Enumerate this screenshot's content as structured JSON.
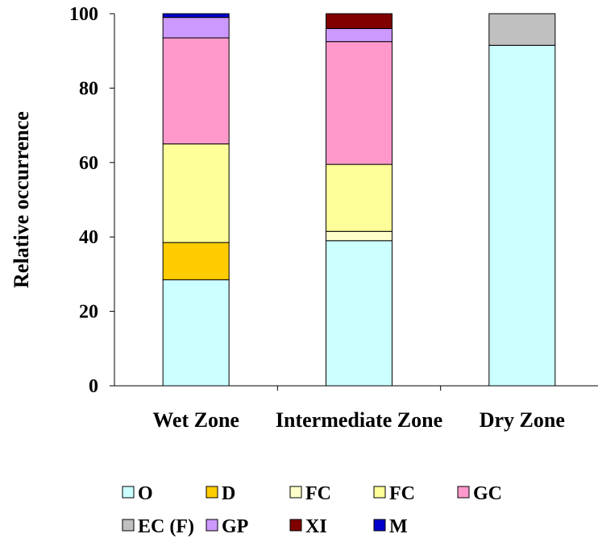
{
  "chart_data": {
    "type": "bar",
    "stacked": true,
    "ylabel": "Relative occurrence",
    "xlabel": "",
    "ylim": [
      0,
      100
    ],
    "yticks": [
      0,
      20,
      40,
      60,
      80,
      100
    ],
    "categories": [
      "Wet Zone",
      "Intermediate Zone",
      "Dry Zone"
    ],
    "series": [
      {
        "name": "O",
        "color": "#ccffff",
        "values": [
          28.5,
          39,
          91.5
        ]
      },
      {
        "name": "D",
        "color": "#ffcc00",
        "values": [
          10,
          0,
          0
        ]
      },
      {
        "name": "FC",
        "color": "#ffffcc",
        "values": [
          0,
          2.5,
          0
        ]
      },
      {
        "name": "FC",
        "color": "#ffff99",
        "values": [
          26.5,
          18,
          0
        ]
      },
      {
        "name": "GC",
        "color": "#ff99cc",
        "values": [
          28.5,
          33,
          0
        ]
      },
      {
        "name": "EC (F)",
        "color": "#c0c0c0",
        "values": [
          0,
          0,
          8.5
        ]
      },
      {
        "name": "GP",
        "color": "#cc99ff",
        "values": [
          5.5,
          3.5,
          0
        ]
      },
      {
        "name": "XI",
        "color": "#800000",
        "values": [
          0,
          4,
          0
        ]
      },
      {
        "name": "M",
        "color": "#0000cc",
        "values": [
          1,
          0,
          0
        ]
      }
    ],
    "legend_position": "bottom",
    "grid": false
  }
}
